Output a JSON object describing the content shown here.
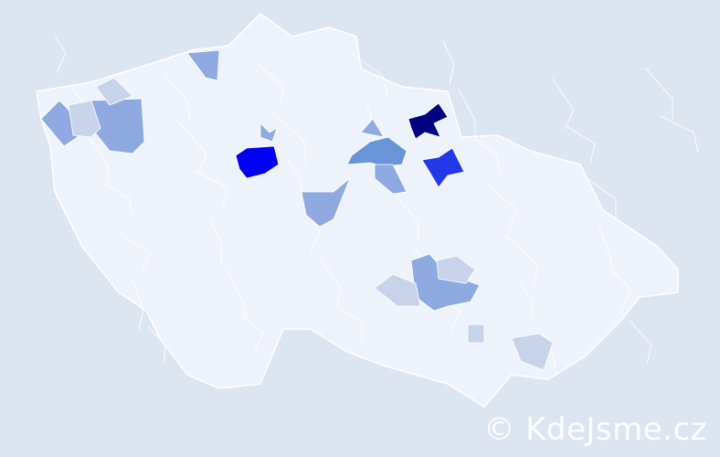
{
  "map": {
    "country_fill": "#eef2fa",
    "border_color": "#ffffff",
    "background": "#dde5f1",
    "highlighted_regions": [
      {
        "level": "highest",
        "color": "#000080"
      },
      {
        "level": "very-high",
        "color": "#0000f5"
      },
      {
        "level": "high",
        "color": "#2238ea"
      },
      {
        "level": "medium",
        "color": "#6894d8"
      },
      {
        "level": "low",
        "color": "#8eaae0"
      },
      {
        "level": "lowest",
        "color": "#c8d3ea"
      }
    ]
  },
  "watermark": {
    "text": "© KdeJsme.cz"
  }
}
